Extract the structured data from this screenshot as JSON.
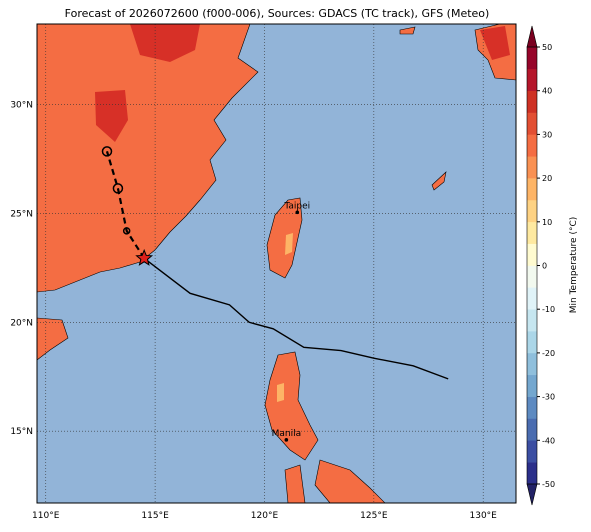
{
  "title": "Forecast of 2026072600 (f000-006), Sources: GDACS (TC track), GFS (Meteo)",
  "map": {
    "lon_range": [
      109.6,
      131.5
    ],
    "lat_range": [
      11.7,
      33.7
    ],
    "lon_ticks": [
      {
        "value": 110,
        "label": "110°E"
      },
      {
        "value": 115,
        "label": "115°E"
      },
      {
        "value": 120,
        "label": "120°E"
      },
      {
        "value": 125,
        "label": "125°E"
      },
      {
        "value": 130,
        "label": "130°E"
      }
    ],
    "lat_ticks": [
      {
        "value": 15,
        "label": "15°N"
      },
      {
        "value": 20,
        "label": "20°N"
      },
      {
        "value": 25,
        "label": "25°N"
      },
      {
        "value": 30,
        "label": "30°N"
      }
    ]
  },
  "cities": [
    {
      "name": "Taipei",
      "lon": 121.5,
      "lat": 25.05
    },
    {
      "name": "Manila",
      "lon": 121.0,
      "lat": 14.6
    }
  ],
  "track": {
    "current": {
      "lon": 114.5,
      "lat": 22.94
    },
    "observed": {
      "lon": [
        116.6,
        118.4,
        119.3,
        120.4,
        121.8,
        123.5,
        125.0,
        126.8,
        128.4
      ],
      "lat": [
        21.33,
        20.8,
        20.0,
        19.7,
        18.85,
        18.7,
        18.35,
        18.0,
        17.4
      ]
    },
    "forecast": {
      "lon": [
        113.7,
        113.3,
        112.8
      ],
      "lat": [
        24.2,
        26.15,
        27.85
      ]
    }
  },
  "colorbar": {
    "label": "Min Temperature (°C)",
    "range": [
      -50,
      50
    ],
    "ticks": [
      -50,
      -40,
      -30,
      -20,
      -10,
      0,
      10,
      20,
      30,
      40,
      50
    ],
    "colors": [
      "#2b2f8a",
      "#3b4ea2",
      "#4a6cb0",
      "#5d8ac1",
      "#74a7cf",
      "#8fbfdc",
      "#abd6e8",
      "#c6e6f0",
      "#e0f3f8",
      "#f2f9ef",
      "#fffbd0",
      "#fee9a0",
      "#fed283",
      "#fdb466",
      "#f99153",
      "#f46d43",
      "#e24f33",
      "#ce3124",
      "#b5162b",
      "#96052a"
    ],
    "under": "#222266",
    "over": "#7a0020"
  }
}
